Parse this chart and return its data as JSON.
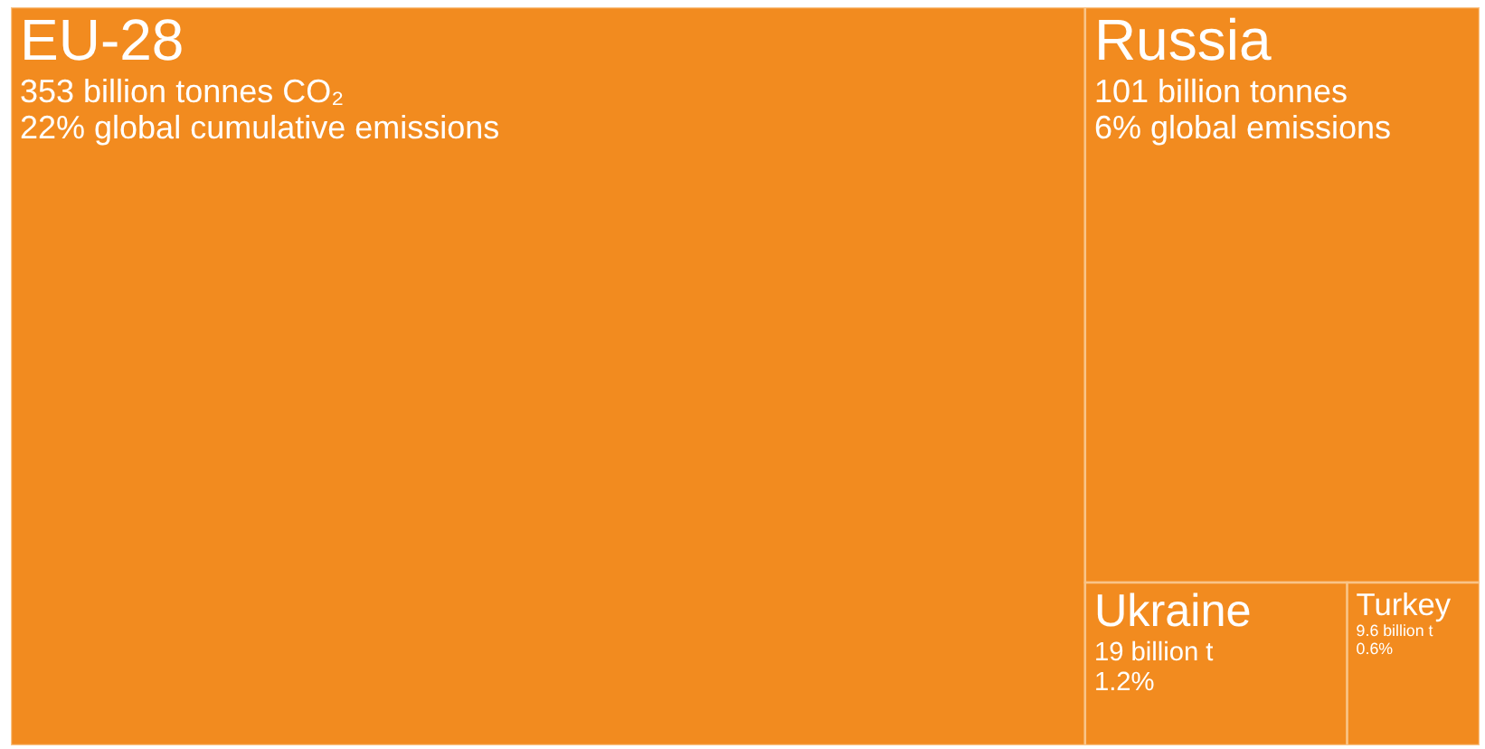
{
  "chart_data": {
    "type": "other",
    "categories": [
      "EU-28",
      "Russia",
      "Ukraine",
      "Turkey"
    ],
    "values": [
      353,
      101,
      19,
      9.6
    ],
    "value_labels": [
      "353 billion tonnes CO₂",
      "101 billion tonnes",
      "19 billion t",
      "9.6 billion t"
    ],
    "annotations": [
      {
        "text": "22% global cumulative emissions",
        "x": "EU-28"
      },
      {
        "text": "6% global emissions",
        "x": "Russia"
      },
      {
        "text": "1.2%",
        "x": "Ukraine"
      },
      {
        "text": "0.6%",
        "x": "Turkey"
      }
    ],
    "color": "#f28b1f"
  }
}
